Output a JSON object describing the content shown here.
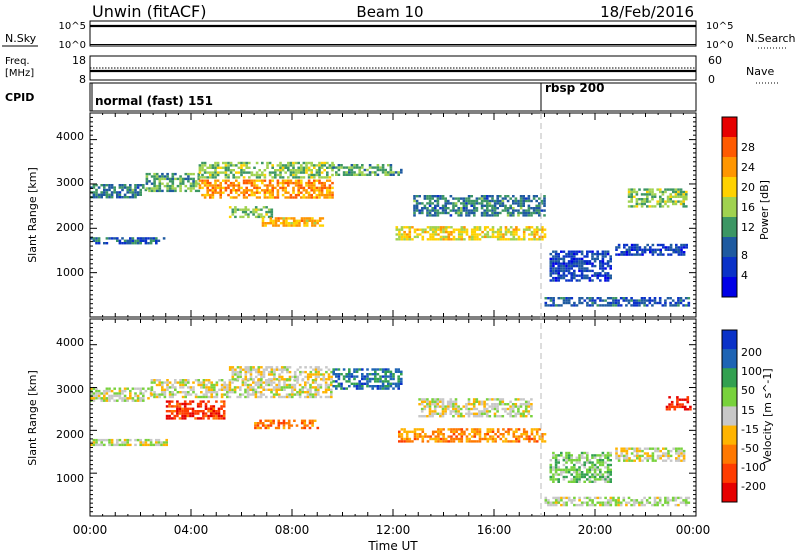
{
  "header": {
    "station": "Unwin (fitACF)",
    "beam": "Beam 10",
    "date": "18/Feb/2016"
  },
  "strips": {
    "nsky": {
      "label": "N.Sky",
      "tick_top": "10^5",
      "tick_bottom": "10^0",
      "right_tick_top": "10^5",
      "right_tick_bottom": "10^0",
      "right_label": "N.Search"
    },
    "freq": {
      "label_line1": "Freq.",
      "label_line2": "[MHz]",
      "tick_top": "18",
      "tick_bottom": "8",
      "right_tick_top": "60",
      "right_tick_bottom": "0",
      "right_label": "Nave"
    },
    "cpid": {
      "label": "CPID",
      "segments": [
        {
          "label": "normal (fast) 151",
          "start_hour": 0
        },
        {
          "label": "rbsp 200",
          "start_hour": 18
        }
      ]
    }
  },
  "panels": {
    "power": {
      "ylabel": "Slant Range [km]",
      "yticks": [
        "4000",
        "3000",
        "2000",
        "1000"
      ],
      "colorbar_label": "Power [dB]",
      "colorbar_ticks": [
        "28",
        "24",
        "20",
        "16",
        "12",
        "8",
        "4"
      ],
      "colorbar_colors": [
        "#e60000",
        "#ff5a00",
        "#ff9600",
        "#ffd200",
        "#a0d250",
        "#3c9664",
        "#1e5aa0",
        "#0a32c8",
        "#0000e6"
      ]
    },
    "velocity": {
      "ylabel": "Slant Range [km]",
      "yticks": [
        "4000",
        "3000",
        "2000",
        "1000"
      ],
      "colorbar_label": "Velocity [m s^-1]",
      "colorbar_ticks": [
        "200",
        "100",
        "50",
        "15",
        "-15",
        "-50",
        "-100",
        "-200"
      ],
      "colorbar_colors": [
        "#0a32c8",
        "#1e64b4",
        "#32a050",
        "#78d23c",
        "#c8c8c8",
        "#ffb400",
        "#ff7800",
        "#ff3c00",
        "#e60000"
      ]
    }
  },
  "xaxis": {
    "label": "Time UT",
    "ticks": [
      "00:00",
      "04:00",
      "08:00",
      "12:00",
      "16:00",
      "20:00",
      "00:00"
    ]
  },
  "chart_data": [
    {
      "type": "heatmap",
      "title": "Unwin (fitACF) Beam 10 18/Feb/2016",
      "xlabel": "Time UT",
      "ylabel": "Slant Range [km]",
      "xlim_hours": [
        0,
        24
      ],
      "ylim": [
        0,
        4600
      ],
      "colorbar": {
        "label": "Power [dB]",
        "range": [
          0,
          30
        ]
      },
      "echo_regions": [
        {
          "t_start": 0.0,
          "t_end": 2.2,
          "range_start": 2700,
          "range_end": 3000,
          "value": 10
        },
        {
          "t_start": 2.2,
          "t_end": 4.3,
          "range_start": 2850,
          "range_end": 3250,
          "value": 12
        },
        {
          "t_start": 4.3,
          "t_end": 9.6,
          "range_start": 2700,
          "range_end": 3100,
          "value": 22
        },
        {
          "t_start": 4.3,
          "t_end": 9.6,
          "range_start": 3150,
          "range_end": 3500,
          "value": 14
        },
        {
          "t_start": 9.6,
          "t_end": 12.3,
          "range_start": 3200,
          "range_end": 3450,
          "value": 12
        },
        {
          "t_start": 0.0,
          "t_end": 2.9,
          "range_start": 1650,
          "range_end": 1800,
          "value": 8
        },
        {
          "t_start": 5.5,
          "t_end": 7.2,
          "range_start": 2250,
          "range_end": 2500,
          "value": 14
        },
        {
          "t_start": 6.8,
          "t_end": 9.2,
          "range_start": 2050,
          "range_end": 2250,
          "value": 20
        },
        {
          "t_start": 12.1,
          "t_end": 18.0,
          "range_start": 1750,
          "range_end": 2050,
          "value": 18
        },
        {
          "t_start": 12.8,
          "t_end": 18.0,
          "range_start": 2300,
          "range_end": 2750,
          "value": 10
        },
        {
          "t_start": 18.0,
          "t_end": 23.7,
          "range_start": 250,
          "range_end": 450,
          "value": 8
        },
        {
          "t_start": 18.2,
          "t_end": 20.6,
          "range_start": 800,
          "range_end": 1500,
          "value": 6
        },
        {
          "t_start": 20.8,
          "t_end": 23.6,
          "range_start": 1400,
          "range_end": 1650,
          "value": 6
        },
        {
          "t_start": 21.3,
          "t_end": 23.6,
          "range_start": 2500,
          "range_end": 2900,
          "value": 14
        }
      ]
    },
    {
      "type": "heatmap",
      "title": "Unwin (fitACF) Beam 10 18/Feb/2016",
      "xlabel": "Time UT",
      "ylabel": "Slant Range [km]",
      "xlim_hours": [
        0,
        24
      ],
      "ylim": [
        0,
        4600
      ],
      "colorbar": {
        "label": "Velocity [m s^-1]",
        "range": [
          -250,
          250
        ]
      },
      "echo_regions": [
        {
          "t_start": 0.0,
          "t_end": 2.4,
          "range_start": 2700,
          "range_end": 3000,
          "value": 0
        },
        {
          "t_start": 2.4,
          "t_end": 9.6,
          "range_start": 2800,
          "range_end": 3200,
          "value": 0
        },
        {
          "t_start": 5.5,
          "t_end": 9.6,
          "range_start": 3200,
          "range_end": 3500,
          "value": -10
        },
        {
          "t_start": 9.6,
          "t_end": 12.3,
          "range_start": 3000,
          "range_end": 3450,
          "value": 150
        },
        {
          "t_start": 3.0,
          "t_end": 5.3,
          "range_start": 2300,
          "range_end": 2700,
          "value": -180
        },
        {
          "t_start": 0.0,
          "t_end": 3.0,
          "range_start": 1650,
          "range_end": 1800,
          "value": 5
        },
        {
          "t_start": 6.5,
          "t_end": 9.0,
          "range_start": 2050,
          "range_end": 2250,
          "value": -120
        },
        {
          "t_start": 12.2,
          "t_end": 18.0,
          "range_start": 1750,
          "range_end": 2050,
          "value": -90
        },
        {
          "t_start": 13.0,
          "t_end": 17.5,
          "range_start": 2350,
          "range_end": 2750,
          "value": 0
        },
        {
          "t_start": 18.0,
          "t_end": 23.7,
          "range_start": 250,
          "range_end": 450,
          "value": 20
        },
        {
          "t_start": 18.2,
          "t_end": 20.6,
          "range_start": 800,
          "range_end": 1500,
          "value": 60
        },
        {
          "t_start": 20.8,
          "t_end": 23.5,
          "range_start": 1300,
          "range_end": 1600,
          "value": 0
        },
        {
          "t_start": 22.8,
          "t_end": 23.8,
          "range_start": 2500,
          "range_end": 2800,
          "value": -200
        }
      ]
    }
  ]
}
